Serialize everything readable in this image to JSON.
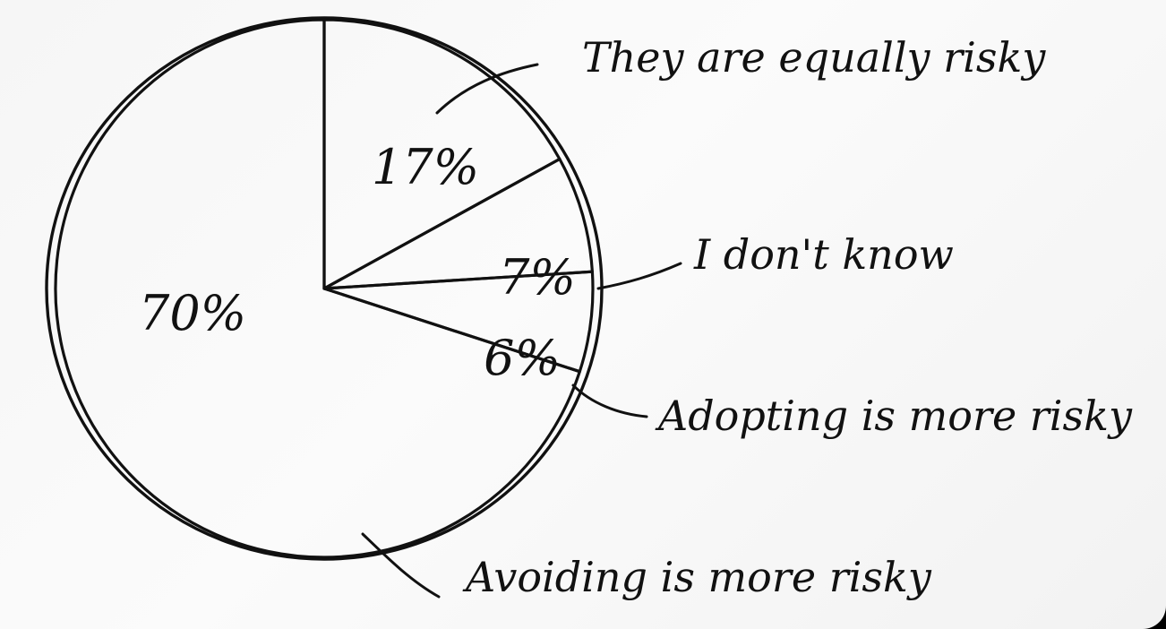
{
  "chart_data": {
    "type": "pie",
    "title": "",
    "slices": [
      {
        "label": "They are equally risky",
        "value": 17,
        "value_label": "17%"
      },
      {
        "label": "I don't know",
        "value": 7,
        "value_label": "7%"
      },
      {
        "label": "Adopting is more risky",
        "value": 6,
        "value_label": "6%"
      },
      {
        "label": "Avoiding is more risky",
        "value": 70,
        "value_label": "70%"
      }
    ],
    "start_angle_deg": -90,
    "direction": "clockwise",
    "style": "hand-drawn, black ink on white paper",
    "colors": {
      "ink": "#111111",
      "paper": "#f6f6f6",
      "background": "#000000"
    }
  }
}
